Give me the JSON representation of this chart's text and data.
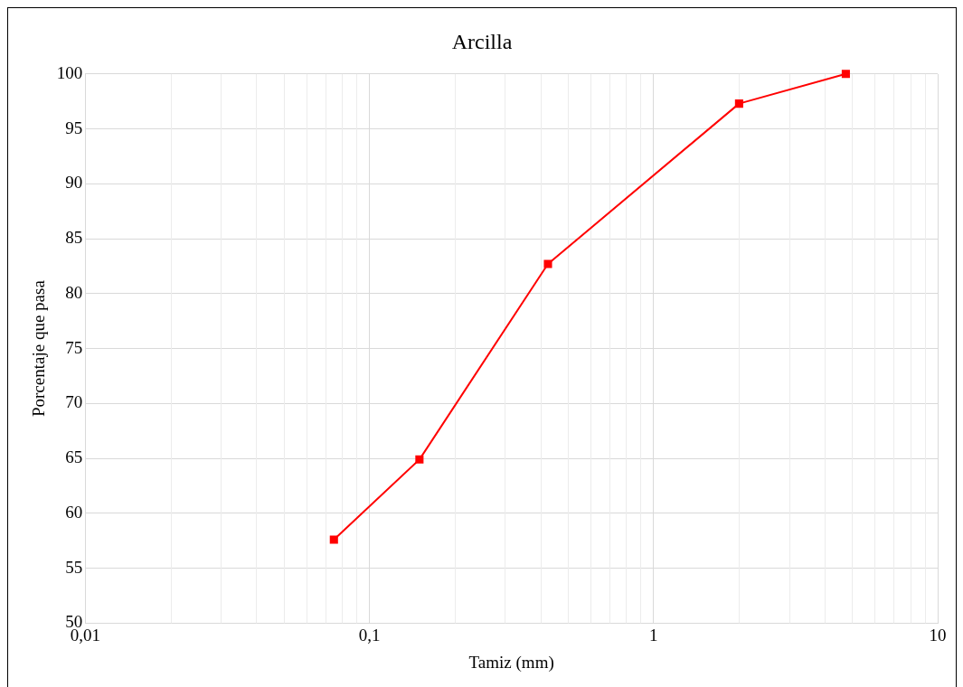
{
  "chart_data": {
    "type": "line",
    "title": "Arcilla",
    "xlabel": "Tamiz (mm)",
    "ylabel": "Porcentaje que pasa",
    "log": "x",
    "x": [
      0.075,
      0.15,
      0.425,
      2,
      4.75
    ],
    "series": [
      {
        "color": "#ff0000",
        "values": [
          57.6,
          64.9,
          82.7,
          97.3,
          100
        ]
      }
    ],
    "xlim": [
      0.01,
      10
    ],
    "xticks": [
      {
        "value": 0.01,
        "label": "0,01"
      },
      {
        "value": 0.1,
        "label": "0,1"
      },
      1,
      10
    ],
    "ylim": [
      50,
      100
    ],
    "yticks": [
      50,
      55,
      60,
      65,
      70,
      75,
      80,
      85,
      90,
      95,
      100
    ],
    "grid": true,
    "legend": false,
    "marker": "square",
    "line_style": "solid"
  }
}
